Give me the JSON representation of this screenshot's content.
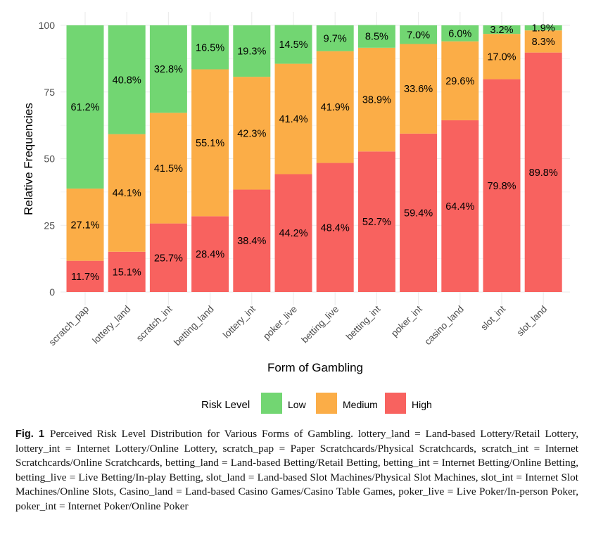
{
  "chart_data": {
    "type": "bar",
    "stacked": true,
    "xlabel": "Form of Gambling",
    "ylabel": "Relative Frequencies",
    "ylim": [
      0,
      100
    ],
    "yticks": [
      0,
      25,
      50,
      75,
      100
    ],
    "categories": [
      "scratch_pap",
      "lottery_land",
      "scratch_int",
      "betting_land",
      "lottery_int",
      "poker_live",
      "betting_live",
      "betting_int",
      "poker_int",
      "casino_land",
      "slot_int",
      "slot_land"
    ],
    "series": [
      {
        "name": "High",
        "color": "#F8625F",
        "values": [
          11.7,
          15.1,
          25.7,
          28.4,
          38.4,
          44.2,
          48.4,
          52.7,
          59.4,
          64.4,
          79.8,
          89.8
        ],
        "labels": [
          "11.7%",
          "15.1%",
          "25.7%",
          "28.4%",
          "38.4%",
          "44.2%",
          "48.4%",
          "52.7%",
          "59.4%",
          "64.4%",
          "79.8%",
          "89.8%"
        ]
      },
      {
        "name": "Medium",
        "color": "#FBAD47",
        "values": [
          27.1,
          44.1,
          41.5,
          55.1,
          42.3,
          41.4,
          41.9,
          38.9,
          33.6,
          29.6,
          17.0,
          8.3
        ],
        "labels": [
          "27.1%",
          "44.1%",
          "41.5%",
          "55.1%",
          "42.3%",
          "41.4%",
          "41.9%",
          "38.9%",
          "33.6%",
          "29.6%",
          "17.0%",
          "8.3%"
        ]
      },
      {
        "name": "Low",
        "color": "#72D672",
        "values": [
          61.2,
          40.8,
          32.8,
          16.5,
          19.3,
          14.5,
          9.7,
          8.5,
          7.0,
          6.0,
          3.2,
          1.9
        ],
        "labels": [
          "61.2%",
          "40.8%",
          "32.8%",
          "16.5%",
          "19.3%",
          "14.5%",
          "9.7%",
          "8.5%",
          "7.0%",
          "6.0%",
          "3.2%",
          "1.9%"
        ]
      }
    ],
    "legend": {
      "title": "Risk Level",
      "position": "bottom",
      "items": [
        {
          "label": "Low",
          "color": "#72D672"
        },
        {
          "label": "Medium",
          "color": "#FBAD47"
        },
        {
          "label": "High",
          "color": "#F8625F"
        }
      ]
    },
    "grid": true,
    "grid_color": "#EBEBEB"
  },
  "caption": {
    "label": "Fig. 1",
    "text": "Perceived Risk Level Distribution for Various Forms of Gambling. lottery_land = Land-based Lottery/Retail Lottery, lottery_int = Internet Lottery/Online Lottery, scratch_pap = Paper Scratchcards/Physical Scratchcards, scratch_int = Internet Scratchcards/Online Scratchcards, betting_land = Land-based Betting/Retail Betting, betting_int = Internet Betting/Online Betting, betting_live = Live Betting/In-play Betting, slot_land = Land-based Slot Machines/Physical Slot Machines, slot_int = Internet Slot Machines/Online Slots, Casino_land = Land-based Casino Games/Casino Table Games, poker_live = Live Poker/In-person Poker, poker_int = Internet Poker/Online Poker"
  }
}
